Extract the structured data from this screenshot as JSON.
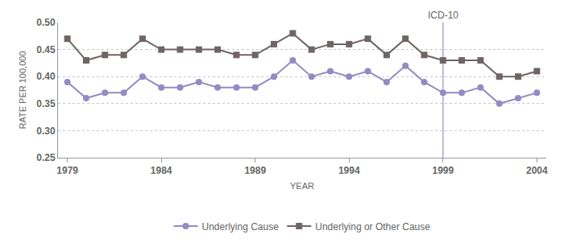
{
  "chart_data": {
    "type": "line",
    "x_label": "YEAR",
    "y_label": "RATE PER 100,000",
    "x": [
      1979,
      1980,
      1981,
      1982,
      1983,
      1984,
      1985,
      1986,
      1987,
      1988,
      1989,
      1990,
      1991,
      1992,
      1993,
      1994,
      1995,
      1996,
      1997,
      1998,
      1999,
      2000,
      2001,
      2002,
      2003,
      2004
    ],
    "series": [
      {
        "name": "Underlying Cause",
        "color": "#938bc2",
        "marker": "circle",
        "values": [
          0.39,
          0.36,
          0.37,
          0.37,
          0.4,
          0.38,
          0.38,
          0.39,
          0.38,
          0.38,
          0.38,
          0.4,
          0.43,
          0.4,
          0.41,
          0.4,
          0.41,
          0.39,
          0.42,
          0.39,
          0.37,
          0.37,
          0.38,
          0.35,
          0.36,
          0.37
        ]
      },
      {
        "name": "Underlying or Other Cause",
        "color": "#6e6564",
        "marker": "square",
        "values": [
          0.47,
          0.43,
          0.44,
          0.44,
          0.47,
          0.45,
          0.45,
          0.45,
          0.45,
          0.44,
          0.44,
          0.46,
          0.48,
          0.45,
          0.46,
          0.46,
          0.47,
          0.44,
          0.47,
          0.44,
          0.43,
          0.43,
          0.43,
          0.4,
          0.4,
          0.41
        ]
      }
    ],
    "xlim": [
      1978.5,
      2004.5
    ],
    "xticks": [
      1979,
      1984,
      1989,
      1994,
      1999,
      2004
    ],
    "ylim": [
      0.25,
      0.5
    ],
    "yticks": [
      {
        "value": 0.25,
        "label": "0.25"
      },
      {
        "value": 0.3,
        "label": "0.30"
      },
      {
        "value": 0.35,
        "label": "0.35"
      },
      {
        "value": 0.4,
        "label": "0.40"
      },
      {
        "value": 0.45,
        "label": "0.45"
      },
      {
        "value": 0.5,
        "label": "0.50"
      }
    ],
    "grid": true,
    "legend": "bottom",
    "annotations": [
      {
        "x": 1999,
        "text": "ICD-10"
      }
    ]
  }
}
